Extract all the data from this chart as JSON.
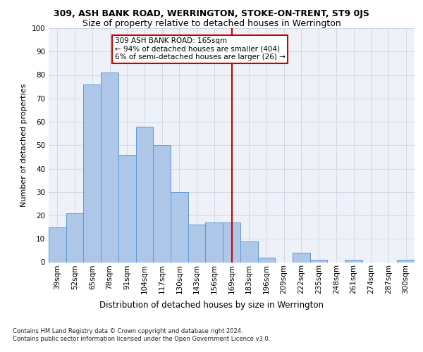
{
  "title1": "309, ASH BANK ROAD, WERRINGTON, STOKE-ON-TRENT, ST9 0JS",
  "title2": "Size of property relative to detached houses in Werrington",
  "xlabel": "Distribution of detached houses by size in Werrington",
  "ylabel": "Number of detached properties",
  "categories": [
    "39sqm",
    "52sqm",
    "65sqm",
    "78sqm",
    "91sqm",
    "104sqm",
    "117sqm",
    "130sqm",
    "143sqm",
    "156sqm",
    "169sqm",
    "183sqm",
    "196sqm",
    "209sqm",
    "222sqm",
    "235sqm",
    "248sqm",
    "261sqm",
    "274sqm",
    "287sqm",
    "300sqm"
  ],
  "values": [
    15,
    21,
    76,
    81,
    46,
    58,
    50,
    30,
    16,
    17,
    17,
    9,
    2,
    0,
    4,
    1,
    0,
    1,
    0,
    0,
    1
  ],
  "bar_color": "#aec6e8",
  "bar_edge_color": "#5b9bd5",
  "vline_index": 10,
  "vline_color": "#cc0000",
  "annotation_text": "309 ASH BANK ROAD: 165sqm\n← 94% of detached houses are smaller (404)\n6% of semi-detached houses are larger (26) →",
  "annotation_box_color": "#cc0000",
  "footer1": "Contains HM Land Registry data © Crown copyright and database right 2024.",
  "footer2": "Contains public sector information licensed under the Open Government Licence v3.0.",
  "ylim": [
    0,
    100
  ],
  "grid_color": "#d0d8e8",
  "bg_color": "#eef2f8",
  "title1_fontsize": 9,
  "title2_fontsize": 9,
  "xlabel_fontsize": 8.5,
  "ylabel_fontsize": 8,
  "tick_fontsize": 7.5,
  "annotation_fontsize": 7.5,
  "footer_fontsize": 6
}
